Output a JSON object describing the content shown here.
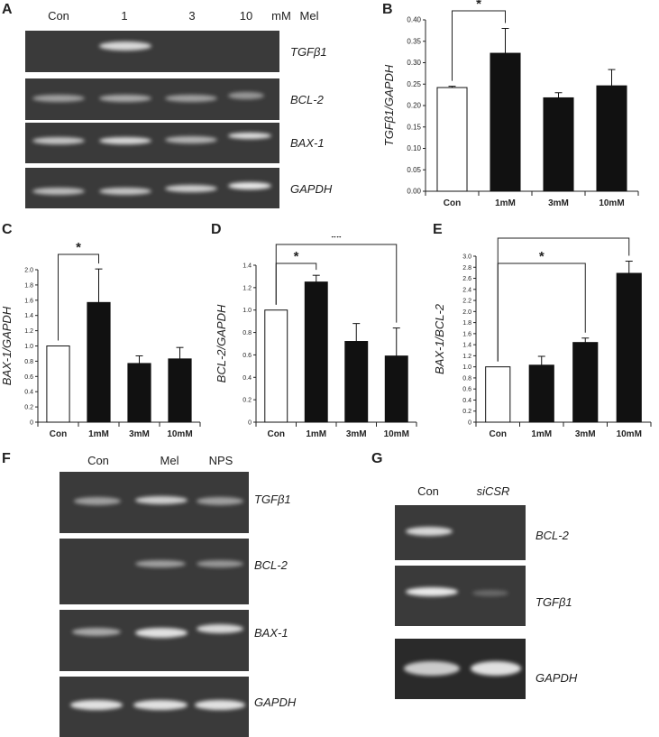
{
  "panelA": {
    "label": "A",
    "lanes": [
      "Con",
      "1",
      "3",
      "10"
    ],
    "unit": "mM",
    "unit2": "Mel",
    "genes": [
      "TGFβ1",
      "BCL-2",
      "BAX-1",
      "GAPDH"
    ],
    "bands": [
      [
        0.04,
        0.85,
        0.0,
        0.0
      ],
      [
        0.55,
        0.6,
        0.55,
        0.5
      ],
      [
        0.75,
        0.85,
        0.65,
        0.9
      ],
      [
        0.7,
        0.75,
        0.8,
        0.95
      ]
    ]
  },
  "panelF": {
    "label": "F",
    "lanes": [
      "Con",
      "Mel",
      "NPS"
    ],
    "genes": [
      "TGFβ1",
      "BCL-2",
      "BAX-1",
      "GAPDH"
    ],
    "bands": [
      [
        0.55,
        0.8,
        0.55
      ],
      [
        0.05,
        0.55,
        0.5
      ],
      [
        0.6,
        0.9,
        0.85
      ],
      [
        0.9,
        0.9,
        0.9
      ]
    ]
  },
  "panelG": {
    "label": "G",
    "lanes": [
      "Con",
      "siCSR"
    ],
    "genes": [
      "BCL-2",
      "TGFβ1",
      "GAPDH"
    ],
    "bands": [
      [
        0.85,
        0.0
      ],
      [
        0.95,
        0.25
      ],
      [
        0.8,
        0.9
      ]
    ]
  },
  "chart_data": [
    {
      "panel": "B",
      "type": "bar",
      "categories": [
        "Con",
        "1mM",
        "3mM",
        "10mM"
      ],
      "values": [
        0.242,
        0.322,
        0.218,
        0.246
      ],
      "errors": [
        0.003,
        0.058,
        0.012,
        0.038
      ],
      "colors": [
        "#ffffff",
        "#111111",
        "#111111",
        "#111111"
      ],
      "ylabel": "TGFβ1/GAPDH",
      "ylim": [
        0,
        0.4
      ],
      "yticks": [
        "0.00",
        "0.05",
        "0.10",
        "0.15",
        "0.20",
        "0.25",
        "0.30",
        "0.35",
        "0.40"
      ],
      "significance": [
        {
          "from": 0,
          "to": 1,
          "mark": "*"
        }
      ]
    },
    {
      "panel": "C",
      "type": "bar",
      "categories": [
        "Con",
        "1mM",
        "3mM",
        "10mM"
      ],
      "values": [
        1.0,
        1.57,
        0.77,
        0.83
      ],
      "errors": [
        0.0,
        0.44,
        0.1,
        0.15
      ],
      "colors": [
        "#ffffff",
        "#111111",
        "#111111",
        "#111111"
      ],
      "ylabel": "BAX-1/GAPDH",
      "ylim": [
        0,
        2.0
      ],
      "yticks": [
        "0",
        "0.2",
        "0.4",
        "0.6",
        "0.8",
        "1.0",
        "1.2",
        "1.4",
        "1.6",
        "1.8",
        "2.0"
      ],
      "significance": [
        {
          "from": 0,
          "to": 1,
          "mark": "*"
        }
      ]
    },
    {
      "panel": "D",
      "type": "bar",
      "categories": [
        "Con",
        "1mM",
        "3mM",
        "10mM"
      ],
      "values": [
        1.0,
        1.25,
        0.72,
        0.59
      ],
      "errors": [
        0.0,
        0.06,
        0.16,
        0.25
      ],
      "colors": [
        "#ffffff",
        "#111111",
        "#111111",
        "#111111"
      ],
      "ylabel": "BCL-2/GAPDH",
      "ylim": [
        0,
        1.4
      ],
      "yticks": [
        "0",
        "0.2",
        "0.4",
        "0.6",
        "0.8",
        "1.0",
        "1.2",
        "1.4"
      ],
      "significance": [
        {
          "from": 0,
          "to": 1,
          "mark": "*"
        },
        {
          "from": 0,
          "to": 3,
          "mark": "**"
        }
      ]
    },
    {
      "panel": "E",
      "type": "bar",
      "categories": [
        "Con",
        "1mM",
        "3mM",
        "10mM"
      ],
      "values": [
        1.0,
        1.03,
        1.44,
        2.69
      ],
      "errors": [
        0.0,
        0.16,
        0.08,
        0.22
      ],
      "colors": [
        "#ffffff",
        "#111111",
        "#111111",
        "#111111"
      ],
      "ylabel": "BAX-1/BCL-2",
      "ylim": [
        0,
        3.0
      ],
      "yticks": [
        "0",
        "0.2",
        "0.4",
        "0.6",
        "0.8",
        "1.0",
        "1.2",
        "1.4",
        "1.6",
        "1.8",
        "2.0",
        "2.2",
        "2.4",
        "2.6",
        "2.8",
        "3.0"
      ],
      "significance": [
        {
          "from": 0,
          "to": 2,
          "mark": "*"
        },
        {
          "from": 0,
          "to": 3,
          "mark": "**"
        }
      ]
    }
  ]
}
